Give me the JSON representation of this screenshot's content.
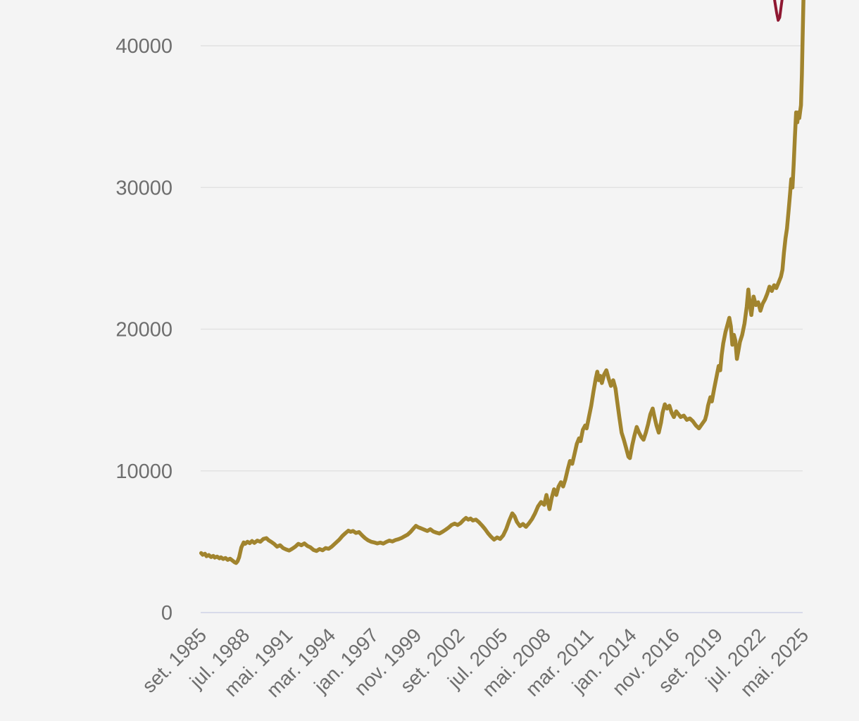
{
  "page": {
    "background_color": "#f4f4f4"
  },
  "chart_data": {
    "type": "line",
    "title": "",
    "xlabel": "",
    "ylabel": "",
    "grid": true,
    "legend": "none",
    "xlim": [
      1985.667,
      2025.333
    ],
    "ylim_ticks": [
      0,
      40000
    ],
    "ylim_visible": [
      0,
      43230
    ],
    "y_ticks": [
      0,
      10000,
      20000,
      30000,
      40000
    ],
    "y_tick_labels": [
      "0",
      "10000",
      "20000",
      "30000",
      "40000"
    ],
    "x_tick_labels": [
      "set. 1985",
      "jul. 1988",
      "mai. 1991",
      "mar. 1994",
      "jan. 1997",
      "nov. 1999",
      "set. 2002",
      "jul. 2005",
      "mai. 2008",
      "mar. 2011",
      "jan. 2014",
      "nov. 2016",
      "set. 2019",
      "jul. 2022",
      "mai. 2025"
    ],
    "x_tick_years": [
      1985.667,
      1988.5,
      1991.333,
      1994.167,
      1997.0,
      1999.833,
      2002.667,
      2005.5,
      2008.333,
      2011.167,
      2014.0,
      2016.833,
      2019.667,
      2022.5,
      2025.333
    ],
    "axis": {
      "label_color": "#6e6e6e",
      "grid_color": "#e2e2e2",
      "zero_line_color": "#d8dbea"
    },
    "series": [
      {
        "id": "main-series",
        "color": "#a1842e",
        "stroke_width": 5.5,
        "points": [
          [
            1985.7,
            4200
          ],
          [
            1985.8,
            4080
          ],
          [
            1985.95,
            4150
          ],
          [
            1986.05,
            3980
          ],
          [
            1986.2,
            4060
          ],
          [
            1986.35,
            3920
          ],
          [
            1986.5,
            4000
          ],
          [
            1986.6,
            3880
          ],
          [
            1986.75,
            3950
          ],
          [
            1986.9,
            3830
          ],
          [
            1987.0,
            3900
          ],
          [
            1987.15,
            3780
          ],
          [
            1987.3,
            3850
          ],
          [
            1987.45,
            3720
          ],
          [
            1987.6,
            3800
          ],
          [
            1987.75,
            3680
          ],
          [
            1987.9,
            3560
          ],
          [
            1988.0,
            3500
          ],
          [
            1988.1,
            3620
          ],
          [
            1988.2,
            3900
          ],
          [
            1988.35,
            4600
          ],
          [
            1988.5,
            4950
          ],
          [
            1988.6,
            4850
          ],
          [
            1988.75,
            5000
          ],
          [
            1988.9,
            4900
          ],
          [
            1989.05,
            5050
          ],
          [
            1989.2,
            4920
          ],
          [
            1989.4,
            5080
          ],
          [
            1989.6,
            5000
          ],
          [
            1989.8,
            5200
          ],
          [
            1990.0,
            5250
          ],
          [
            1990.15,
            5100
          ],
          [
            1990.3,
            5000
          ],
          [
            1990.5,
            4850
          ],
          [
            1990.7,
            4650
          ],
          [
            1990.9,
            4750
          ],
          [
            1991.1,
            4550
          ],
          [
            1991.3,
            4450
          ],
          [
            1991.5,
            4380
          ],
          [
            1991.7,
            4500
          ],
          [
            1991.9,
            4650
          ],
          [
            1992.1,
            4850
          ],
          [
            1992.3,
            4750
          ],
          [
            1992.5,
            4880
          ],
          [
            1992.7,
            4700
          ],
          [
            1992.9,
            4600
          ],
          [
            1993.1,
            4420
          ],
          [
            1993.3,
            4350
          ],
          [
            1993.5,
            4480
          ],
          [
            1993.7,
            4400
          ],
          [
            1993.9,
            4550
          ],
          [
            1994.1,
            4500
          ],
          [
            1994.3,
            4650
          ],
          [
            1994.55,
            4900
          ],
          [
            1994.8,
            5150
          ],
          [
            1995.0,
            5400
          ],
          [
            1995.2,
            5600
          ],
          [
            1995.4,
            5780
          ],
          [
            1995.55,
            5700
          ],
          [
            1995.7,
            5760
          ],
          [
            1995.9,
            5620
          ],
          [
            1996.1,
            5680
          ],
          [
            1996.3,
            5450
          ],
          [
            1996.5,
            5250
          ],
          [
            1996.7,
            5100
          ],
          [
            1996.9,
            5000
          ],
          [
            1997.1,
            4950
          ],
          [
            1997.3,
            4880
          ],
          [
            1997.5,
            4940
          ],
          [
            1997.7,
            4870
          ],
          [
            1997.9,
            4990
          ],
          [
            1998.1,
            5080
          ],
          [
            1998.3,
            5020
          ],
          [
            1998.5,
            5120
          ],
          [
            1998.7,
            5180
          ],
          [
            1998.9,
            5260
          ],
          [
            1999.1,
            5380
          ],
          [
            1999.3,
            5500
          ],
          [
            1999.5,
            5700
          ],
          [
            1999.7,
            5950
          ],
          [
            1999.85,
            6120
          ],
          [
            2000.0,
            6020
          ],
          [
            2000.2,
            5940
          ],
          [
            2000.4,
            5850
          ],
          [
            2000.6,
            5760
          ],
          [
            2000.8,
            5880
          ],
          [
            2001.0,
            5720
          ],
          [
            2001.2,
            5640
          ],
          [
            2001.4,
            5580
          ],
          [
            2001.6,
            5700
          ],
          [
            2001.8,
            5840
          ],
          [
            2002.0,
            6000
          ],
          [
            2002.2,
            6180
          ],
          [
            2002.4,
            6280
          ],
          [
            2002.6,
            6180
          ],
          [
            2002.8,
            6320
          ],
          [
            2003.0,
            6550
          ],
          [
            2003.15,
            6680
          ],
          [
            2003.3,
            6560
          ],
          [
            2003.45,
            6640
          ],
          [
            2003.6,
            6500
          ],
          [
            2003.8,
            6560
          ],
          [
            2004.0,
            6380
          ],
          [
            2004.2,
            6150
          ],
          [
            2004.4,
            5900
          ],
          [
            2004.6,
            5600
          ],
          [
            2004.8,
            5350
          ],
          [
            2005.0,
            5150
          ],
          [
            2005.2,
            5300
          ],
          [
            2005.4,
            5200
          ],
          [
            2005.6,
            5450
          ],
          [
            2005.8,
            5900
          ],
          [
            2006.0,
            6500
          ],
          [
            2006.2,
            7000
          ],
          [
            2006.35,
            6800
          ],
          [
            2006.5,
            6400
          ],
          [
            2006.7,
            6100
          ],
          [
            2006.9,
            6250
          ],
          [
            2007.1,
            6050
          ],
          [
            2007.3,
            6300
          ],
          [
            2007.5,
            6600
          ],
          [
            2007.7,
            7000
          ],
          [
            2007.9,
            7500
          ],
          [
            2008.1,
            7800
          ],
          [
            2008.3,
            7600
          ],
          [
            2008.45,
            8300
          ],
          [
            2008.55,
            7800
          ],
          [
            2008.65,
            7300
          ],
          [
            2008.8,
            8100
          ],
          [
            2008.95,
            8700
          ],
          [
            2009.1,
            8300
          ],
          [
            2009.25,
            8900
          ],
          [
            2009.4,
            9200
          ],
          [
            2009.55,
            8900
          ],
          [
            2009.7,
            9400
          ],
          [
            2009.85,
            10100
          ],
          [
            2010.0,
            10700
          ],
          [
            2010.15,
            10500
          ],
          [
            2010.3,
            11200
          ],
          [
            2010.45,
            11900
          ],
          [
            2010.6,
            12300
          ],
          [
            2010.7,
            12100
          ],
          [
            2010.85,
            12900
          ],
          [
            2011.0,
            13200
          ],
          [
            2011.1,
            13000
          ],
          [
            2011.25,
            13800
          ],
          [
            2011.4,
            14600
          ],
          [
            2011.55,
            15600
          ],
          [
            2011.7,
            16500
          ],
          [
            2011.8,
            17000
          ],
          [
            2011.9,
            16400
          ],
          [
            2012.0,
            16700
          ],
          [
            2012.1,
            16200
          ],
          [
            2012.25,
            16800
          ],
          [
            2012.4,
            17100
          ],
          [
            2012.55,
            16500
          ],
          [
            2012.7,
            16000
          ],
          [
            2012.85,
            16400
          ],
          [
            2013.0,
            15800
          ],
          [
            2013.1,
            15000
          ],
          [
            2013.25,
            13800
          ],
          [
            2013.4,
            12700
          ],
          [
            2013.55,
            12200
          ],
          [
            2013.7,
            11600
          ],
          [
            2013.85,
            11000
          ],
          [
            2013.95,
            10900
          ],
          [
            2014.1,
            11800
          ],
          [
            2014.25,
            12500
          ],
          [
            2014.4,
            13100
          ],
          [
            2014.55,
            12700
          ],
          [
            2014.7,
            12400
          ],
          [
            2014.85,
            12200
          ],
          [
            2015.0,
            12700
          ],
          [
            2015.15,
            13300
          ],
          [
            2015.3,
            14000
          ],
          [
            2015.45,
            14400
          ],
          [
            2015.55,
            13900
          ],
          [
            2015.7,
            13200
          ],
          [
            2015.85,
            12700
          ],
          [
            2016.0,
            13400
          ],
          [
            2016.1,
            14100
          ],
          [
            2016.25,
            14700
          ],
          [
            2016.4,
            14400
          ],
          [
            2016.55,
            14600
          ],
          [
            2016.7,
            14100
          ],
          [
            2016.85,
            13800
          ],
          [
            2017.0,
            14200
          ],
          [
            2017.15,
            14000
          ],
          [
            2017.3,
            13800
          ],
          [
            2017.5,
            13900
          ],
          [
            2017.7,
            13600
          ],
          [
            2017.9,
            13700
          ],
          [
            2018.1,
            13500
          ],
          [
            2018.3,
            13200
          ],
          [
            2018.5,
            13000
          ],
          [
            2018.7,
            13300
          ],
          [
            2018.9,
            13600
          ],
          [
            2019.0,
            14000
          ],
          [
            2019.1,
            14600
          ],
          [
            2019.25,
            15200
          ],
          [
            2019.35,
            14900
          ],
          [
            2019.5,
            15800
          ],
          [
            2019.65,
            16600
          ],
          [
            2019.8,
            17400
          ],
          [
            2019.9,
            17100
          ],
          [
            2020.0,
            18200
          ],
          [
            2020.1,
            19000
          ],
          [
            2020.25,
            19800
          ],
          [
            2020.4,
            20400
          ],
          [
            2020.5,
            20800
          ],
          [
            2020.6,
            20200
          ],
          [
            2020.7,
            18900
          ],
          [
            2020.8,
            19600
          ],
          [
            2020.9,
            19200
          ],
          [
            2021.0,
            17900
          ],
          [
            2021.1,
            18500
          ],
          [
            2021.2,
            19100
          ],
          [
            2021.35,
            19600
          ],
          [
            2021.5,
            20400
          ],
          [
            2021.65,
            21600
          ],
          [
            2021.75,
            22800
          ],
          [
            2021.85,
            21800
          ],
          [
            2021.95,
            21000
          ],
          [
            2022.1,
            22300
          ],
          [
            2022.25,
            21700
          ],
          [
            2022.4,
            21900
          ],
          [
            2022.55,
            21300
          ],
          [
            2022.7,
            21800
          ],
          [
            2022.85,
            22100
          ],
          [
            2023.0,
            22500
          ],
          [
            2023.15,
            23000
          ],
          [
            2023.3,
            22700
          ],
          [
            2023.45,
            23100
          ],
          [
            2023.6,
            22900
          ],
          [
            2023.75,
            23300
          ],
          [
            2023.9,
            23700
          ],
          [
            2024.0,
            24200
          ],
          [
            2024.1,
            25400
          ],
          [
            2024.2,
            26400
          ],
          [
            2024.3,
            27100
          ],
          [
            2024.4,
            28300
          ],
          [
            2024.5,
            29500
          ],
          [
            2024.58,
            30600
          ],
          [
            2024.66,
            30000
          ],
          [
            2024.74,
            31600
          ],
          [
            2024.82,
            33500
          ],
          [
            2024.9,
            35300
          ],
          [
            2024.98,
            34600
          ],
          [
            2025.05,
            35300
          ],
          [
            2025.11,
            34900
          ],
          [
            2025.17,
            35400
          ],
          [
            2025.22,
            35800
          ],
          [
            2025.28,
            38000
          ],
          [
            2025.33,
            40500
          ],
          [
            2025.38,
            43000
          ],
          [
            2025.43,
            45500
          ],
          [
            2025.48,
            47500
          ]
        ]
      },
      {
        "id": "secondary-series",
        "color": "#8e1731",
        "stroke_width": 4,
        "points": [
          [
            2023.35,
            44200
          ],
          [
            2023.5,
            43100
          ],
          [
            2023.62,
            42300
          ],
          [
            2023.72,
            41800
          ],
          [
            2023.82,
            42000
          ],
          [
            2023.92,
            42800
          ],
          [
            2024.05,
            43800
          ],
          [
            2024.15,
            44600
          ]
        ]
      }
    ]
  }
}
